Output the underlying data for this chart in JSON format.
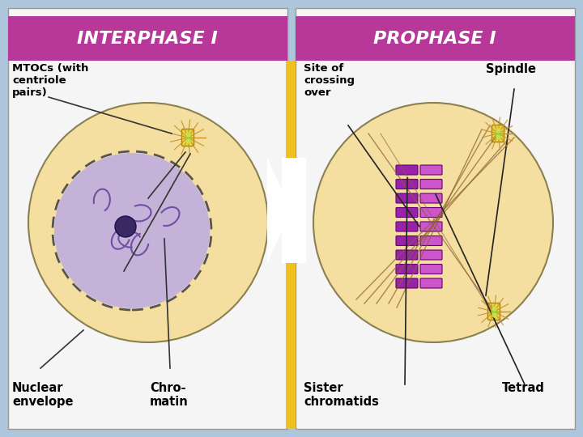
{
  "bg_color": "#aec6dc",
  "panel_bg": "#f5f5f5",
  "header_color": "#b8389a",
  "header_text_color": "#ffffff",
  "cell_fill": "#f5dfa0",
  "cell_edge": "#8a8050",
  "nucleus_fill": "#c0aee0",
  "nucleus_edge": "#7060a0",
  "nucleolus_fill": "#3a2865",
  "mtoc_ray_color": "#c89020",
  "mtoc_center_fill": "#e8d840",
  "mtoc_center_edge": "#a88010",
  "spindle_color": "#c8a060",
  "line_color": "#333333",
  "chromo_color1": "#9922aa",
  "chromo_color2": "#cc55cc",
  "left_title": "INTERPHASE I",
  "right_title": "PROPHASE I",
  "label_mtoc": "MTOCs (with\ncentriole\npairs)",
  "label_nuc_env": "Nuclear\nenvelope",
  "label_chromatin": "Chro-\nmatin",
  "label_crossing": "Site of\ncrossing\nover",
  "label_spindle": "Spindle",
  "label_sister": "Sister\nchromatids",
  "label_tetrad": "Tetrad"
}
